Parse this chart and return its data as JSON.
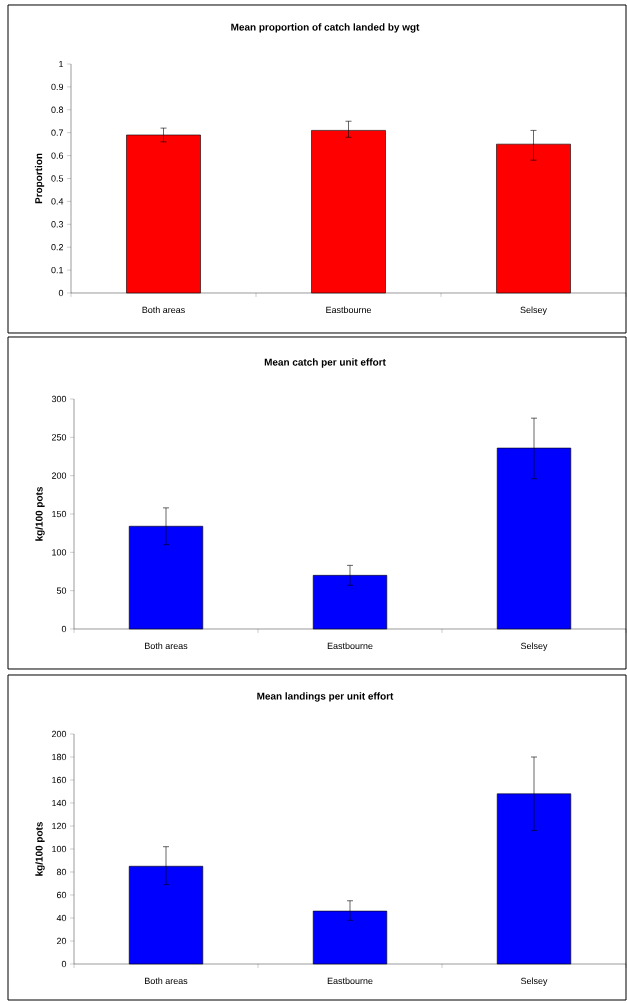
{
  "chart_data": [
    {
      "type": "bar",
      "title": "Mean proportion of catch landed by wgt",
      "ylabel": "Proportion",
      "categories": [
        "Both areas",
        "Eastbourne",
        "Selsey"
      ],
      "values": [
        0.69,
        0.71,
        0.65
      ],
      "errors": [
        [
          0.66,
          0.72
        ],
        [
          0.68,
          0.75
        ],
        [
          0.58,
          0.71
        ]
      ],
      "color": "#ff0000",
      "ylim": [
        0,
        1
      ],
      "yticks": [
        0,
        0.1,
        0.2,
        0.3,
        0.4,
        0.5,
        0.6,
        0.7,
        0.8,
        0.9,
        1
      ]
    },
    {
      "type": "bar",
      "title": "Mean catch per unit effort",
      "ylabel": "kg/100 pots",
      "categories": [
        "Both areas",
        "Eastbourne",
        "Selsey"
      ],
      "values": [
        134,
        70,
        236
      ],
      "errors": [
        [
          110,
          158
        ],
        [
          57,
          83
        ],
        [
          196,
          275
        ]
      ],
      "color": "#0000ff",
      "ylim": [
        0,
        300
      ],
      "yticks": [
        0,
        50,
        100,
        150,
        200,
        250,
        300
      ]
    },
    {
      "type": "bar",
      "title": "Mean landings per unit effort",
      "ylabel": "kg/100 pots",
      "categories": [
        "Both areas",
        "Eastbourne",
        "Selsey"
      ],
      "values": [
        85,
        46,
        148
      ],
      "errors": [
        [
          69,
          102
        ],
        [
          38,
          55
        ],
        [
          116,
          180
        ]
      ],
      "color": "#0000ff",
      "ylim": [
        0,
        200
      ],
      "yticks": [
        0,
        20,
        40,
        60,
        80,
        100,
        120,
        140,
        160,
        180,
        200
      ]
    }
  ]
}
